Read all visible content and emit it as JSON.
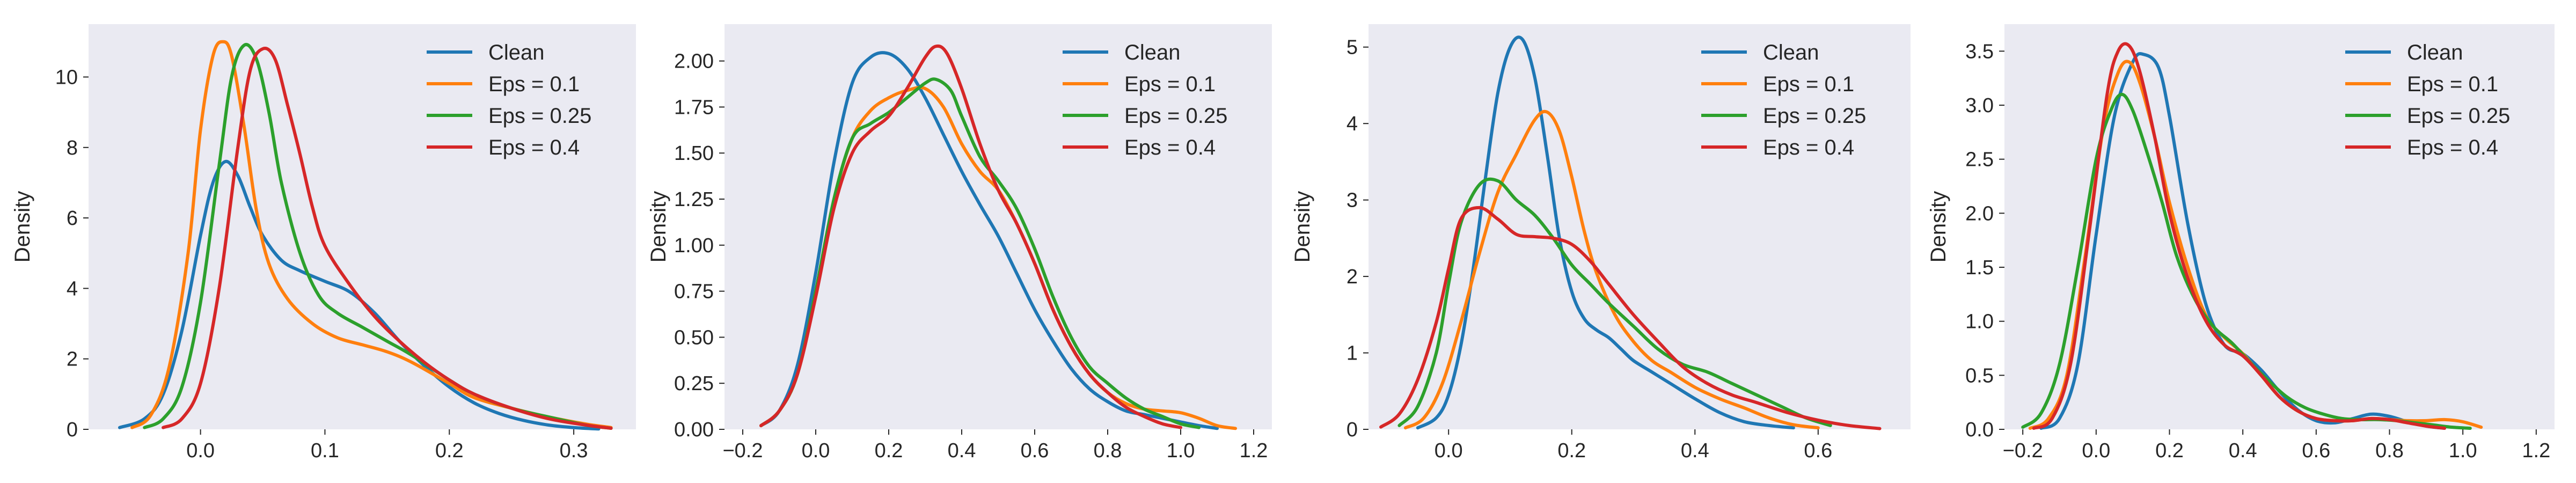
{
  "chart_data": [
    {
      "type": "line",
      "ylabel": "Density",
      "xlim": [
        -0.09,
        0.35
      ],
      "ylim": [
        0,
        11.5
      ],
      "xticks": [
        0.0,
        0.1,
        0.2,
        0.3
      ],
      "xtick_labels": [
        "0.0",
        "0.1",
        "0.2",
        "0.3"
      ],
      "yticks": [
        0,
        2,
        4,
        6,
        8,
        10
      ],
      "ytick_labels": [
        "0",
        "2",
        "4",
        "6",
        "8",
        "10"
      ],
      "grid": false,
      "legend": "top-right",
      "series": [
        {
          "name": "Clean",
          "color": "#1f77b4",
          "x": [
            -0.065,
            -0.045,
            -0.03,
            -0.015,
            0.0,
            0.01,
            0.02,
            0.03,
            0.04,
            0.05,
            0.065,
            0.08,
            0.1,
            0.12,
            0.14,
            0.16,
            0.18,
            0.2,
            0.22,
            0.24,
            0.26,
            0.28,
            0.3,
            0.32
          ],
          "y": [
            0.05,
            0.3,
            1.0,
            2.8,
            5.5,
            7.0,
            7.6,
            7.2,
            6.3,
            5.5,
            4.8,
            4.5,
            4.2,
            3.9,
            3.3,
            2.5,
            1.8,
            1.2,
            0.75,
            0.45,
            0.25,
            0.12,
            0.05,
            0.01
          ]
        },
        {
          "name": "Eps = 0.1",
          "color": "#ff7f0e",
          "x": [
            -0.055,
            -0.04,
            -0.025,
            -0.01,
            0.0,
            0.01,
            0.018,
            0.025,
            0.035,
            0.045,
            0.055,
            0.07,
            0.09,
            0.11,
            0.13,
            0.15,
            0.17,
            0.2,
            0.22,
            0.25,
            0.28,
            0.31,
            0.33
          ],
          "y": [
            0.05,
            0.4,
            1.8,
            5.0,
            8.5,
            10.6,
            11.0,
            10.6,
            8.6,
            6.2,
            4.7,
            3.7,
            3.0,
            2.6,
            2.4,
            2.2,
            1.9,
            1.3,
            0.9,
            0.6,
            0.35,
            0.15,
            0.05
          ]
        },
        {
          "name": "Eps = 0.25",
          "color": "#2ca02c",
          "x": [
            -0.045,
            -0.03,
            -0.015,
            0.0,
            0.015,
            0.025,
            0.035,
            0.045,
            0.055,
            0.065,
            0.08,
            0.095,
            0.11,
            0.13,
            0.15,
            0.17,
            0.2,
            0.22,
            0.25,
            0.28,
            0.31,
            0.33
          ],
          "y": [
            0.05,
            0.3,
            1.2,
            3.6,
            7.5,
            10.0,
            10.9,
            10.5,
            9.0,
            7.0,
            5.0,
            3.8,
            3.3,
            2.9,
            2.5,
            2.1,
            1.4,
            1.0,
            0.6,
            0.35,
            0.12,
            0.03
          ]
        },
        {
          "name": "Eps = 0.4",
          "color": "#d62728",
          "x": [
            -0.03,
            -0.015,
            0.0,
            0.015,
            0.03,
            0.04,
            0.05,
            0.06,
            0.07,
            0.08,
            0.09,
            0.1,
            0.12,
            0.14,
            0.16,
            0.18,
            0.2,
            0.22,
            0.25,
            0.28,
            0.31,
            0.33
          ],
          "y": [
            0.05,
            0.3,
            1.3,
            4.0,
            8.0,
            10.2,
            10.8,
            10.5,
            9.2,
            7.8,
            6.3,
            5.2,
            4.1,
            3.2,
            2.5,
            1.9,
            1.4,
            1.0,
            0.6,
            0.3,
            0.12,
            0.03
          ]
        }
      ]
    },
    {
      "type": "line",
      "ylabel": "Density",
      "xlim": [
        -0.25,
        1.25
      ],
      "ylim": [
        0,
        2.2
      ],
      "xticks": [
        -0.2,
        0.0,
        0.2,
        0.4,
        0.6,
        0.8,
        1.0,
        1.2
      ],
      "xtick_labels": [
        "−0.2",
        "0.0",
        "0.2",
        "0.4",
        "0.6",
        "0.8",
        "1.0",
        "1.2"
      ],
      "yticks": [
        0.0,
        0.25,
        0.5,
        0.75,
        1.0,
        1.25,
        1.5,
        1.75,
        2.0
      ],
      "ytick_labels": [
        "0.00",
        "0.25",
        "0.50",
        "0.75",
        "1.00",
        "1.25",
        "1.50",
        "1.75",
        "2.00"
      ],
      "grid": false,
      "legend": "top-right",
      "series": [
        {
          "name": "Clean",
          "color": "#1f77b4",
          "x": [
            -0.15,
            -0.1,
            -0.05,
            0.0,
            0.05,
            0.1,
            0.15,
            0.2,
            0.25,
            0.3,
            0.35,
            0.4,
            0.45,
            0.5,
            0.55,
            0.6,
            0.65,
            0.7,
            0.75,
            0.8,
            0.85,
            0.9,
            0.95,
            1.0,
            1.05,
            1.1
          ],
          "y": [
            0.02,
            0.1,
            0.35,
            0.85,
            1.45,
            1.88,
            2.02,
            2.04,
            1.96,
            1.8,
            1.6,
            1.4,
            1.22,
            1.05,
            0.85,
            0.65,
            0.48,
            0.33,
            0.22,
            0.15,
            0.1,
            0.08,
            0.06,
            0.04,
            0.02,
            0.005
          ]
        },
        {
          "name": "Eps = 0.1",
          "color": "#ff7f0e",
          "x": [
            -0.15,
            -0.1,
            -0.05,
            0.0,
            0.05,
            0.1,
            0.15,
            0.2,
            0.25,
            0.3,
            0.35,
            0.4,
            0.45,
            0.5,
            0.55,
            0.6,
            0.65,
            0.7,
            0.75,
            0.8,
            0.85,
            0.9,
            0.95,
            1.0,
            1.05,
            1.1,
            1.15
          ],
          "y": [
            0.02,
            0.1,
            0.3,
            0.75,
            1.25,
            1.58,
            1.73,
            1.8,
            1.84,
            1.85,
            1.75,
            1.55,
            1.4,
            1.3,
            1.12,
            0.9,
            0.65,
            0.45,
            0.3,
            0.2,
            0.14,
            0.11,
            0.1,
            0.09,
            0.06,
            0.02,
            0.005
          ]
        },
        {
          "name": "Eps = 0.25",
          "color": "#2ca02c",
          "x": [
            -0.15,
            -0.1,
            -0.05,
            0.0,
            0.05,
            0.1,
            0.15,
            0.2,
            0.25,
            0.3,
            0.33,
            0.37,
            0.4,
            0.45,
            0.5,
            0.55,
            0.6,
            0.65,
            0.7,
            0.75,
            0.8,
            0.85,
            0.9,
            0.95,
            1.0,
            1.05
          ],
          "y": [
            0.02,
            0.1,
            0.3,
            0.75,
            1.25,
            1.58,
            1.66,
            1.72,
            1.8,
            1.88,
            1.9,
            1.84,
            1.7,
            1.48,
            1.35,
            1.2,
            0.98,
            0.72,
            0.5,
            0.34,
            0.25,
            0.17,
            0.11,
            0.07,
            0.03,
            0.01
          ]
        },
        {
          "name": "Eps = 0.4",
          "color": "#d62728",
          "x": [
            -0.15,
            -0.1,
            -0.05,
            0.0,
            0.05,
            0.1,
            0.15,
            0.2,
            0.25,
            0.3,
            0.33,
            0.36,
            0.4,
            0.45,
            0.5,
            0.55,
            0.6,
            0.65,
            0.7,
            0.75,
            0.8,
            0.85,
            0.9,
            0.95,
            1.0
          ],
          "y": [
            0.02,
            0.1,
            0.3,
            0.72,
            1.2,
            1.5,
            1.62,
            1.7,
            1.85,
            2.02,
            2.08,
            2.04,
            1.85,
            1.55,
            1.3,
            1.12,
            0.9,
            0.65,
            0.45,
            0.3,
            0.2,
            0.12,
            0.07,
            0.03,
            0.01
          ]
        }
      ]
    },
    {
      "type": "line",
      "ylabel": "Density",
      "xlim": [
        -0.13,
        0.75
      ],
      "ylim": [
        0,
        5.3
      ],
      "xticks": [
        0.0,
        0.2,
        0.4,
        0.6
      ],
      "xtick_labels": [
        "0.0",
        "0.2",
        "0.4",
        "0.6"
      ],
      "yticks": [
        0,
        1,
        2,
        3,
        4,
        5
      ],
      "ytick_labels": [
        "0",
        "1",
        "2",
        "3",
        "4",
        "5"
      ],
      "grid": false,
      "legend": "top-right",
      "series": [
        {
          "name": "Clean",
          "color": "#1f77b4",
          "x": [
            -0.05,
            -0.02,
            0.0,
            0.02,
            0.04,
            0.06,
            0.08,
            0.1,
            0.12,
            0.14,
            0.16,
            0.18,
            0.2,
            0.22,
            0.24,
            0.26,
            0.28,
            0.3,
            0.33,
            0.36,
            0.4,
            0.44,
            0.48,
            0.52,
            0.56
          ],
          "y": [
            0.02,
            0.15,
            0.45,
            1.1,
            2.1,
            3.3,
            4.4,
            5.0,
            5.1,
            4.6,
            3.6,
            2.5,
            1.8,
            1.45,
            1.3,
            1.2,
            1.05,
            0.9,
            0.75,
            0.6,
            0.4,
            0.22,
            0.1,
            0.05,
            0.02
          ]
        },
        {
          "name": "Eps = 0.1",
          "color": "#ff7f0e",
          "x": [
            -0.07,
            -0.04,
            -0.01,
            0.02,
            0.05,
            0.08,
            0.11,
            0.14,
            0.16,
            0.18,
            0.2,
            0.22,
            0.24,
            0.27,
            0.3,
            0.33,
            0.36,
            0.4,
            0.44,
            0.48,
            0.52,
            0.56,
            0.6
          ],
          "y": [
            0.02,
            0.15,
            0.6,
            1.4,
            2.3,
            3.1,
            3.6,
            4.05,
            4.15,
            3.9,
            3.3,
            2.6,
            2.05,
            1.5,
            1.15,
            0.9,
            0.75,
            0.55,
            0.4,
            0.28,
            0.15,
            0.06,
            0.02
          ]
        },
        {
          "name": "Eps = 0.25",
          "color": "#2ca02c",
          "x": [
            -0.08,
            -0.05,
            -0.02,
            0.0,
            0.02,
            0.05,
            0.08,
            0.11,
            0.14,
            0.17,
            0.2,
            0.23,
            0.26,
            0.3,
            0.34,
            0.38,
            0.42,
            0.46,
            0.5,
            0.54,
            0.58,
            0.62
          ],
          "y": [
            0.05,
            0.3,
            1.0,
            1.9,
            2.7,
            3.2,
            3.25,
            3.0,
            2.8,
            2.5,
            2.15,
            1.9,
            1.65,
            1.35,
            1.05,
            0.85,
            0.75,
            0.6,
            0.45,
            0.3,
            0.15,
            0.05
          ]
        },
        {
          "name": "Eps = 0.4",
          "color": "#d62728",
          "x": [
            -0.11,
            -0.08,
            -0.05,
            -0.02,
            0.0,
            0.02,
            0.05,
            0.08,
            0.11,
            0.14,
            0.17,
            0.2,
            0.23,
            0.26,
            0.3,
            0.34,
            0.38,
            0.42,
            0.46,
            0.5,
            0.55,
            0.6,
            0.65,
            0.7
          ],
          "y": [
            0.03,
            0.2,
            0.65,
            1.4,
            2.1,
            2.75,
            2.9,
            2.75,
            2.55,
            2.52,
            2.5,
            2.42,
            2.2,
            1.9,
            1.5,
            1.15,
            0.82,
            0.6,
            0.45,
            0.35,
            0.22,
            0.12,
            0.05,
            0.01
          ]
        }
      ]
    },
    {
      "type": "line",
      "ylabel": "Density",
      "xlim": [
        -0.25,
        1.25
      ],
      "ylim": [
        0,
        3.75
      ],
      "xticks": [
        -0.2,
        0.0,
        0.2,
        0.4,
        0.6,
        0.8,
        1.0,
        1.2
      ],
      "xtick_labels": [
        "−0.2",
        "0.0",
        "0.2",
        "0.4",
        "0.6",
        "0.8",
        "1.0",
        "1.2"
      ],
      "yticks": [
        0.0,
        0.5,
        1.0,
        1.5,
        2.0,
        2.5,
        3.0,
        3.5
      ],
      "ytick_labels": [
        "0.0",
        "0.5",
        "1.0",
        "1.5",
        "2.0",
        "2.5",
        "3.0",
        "3.5"
      ],
      "grid": false,
      "legend": "top-right",
      "series": [
        {
          "name": "Clean",
          "color": "#1f77b4",
          "x": [
            -0.15,
            -0.1,
            -0.05,
            0.0,
            0.05,
            0.1,
            0.13,
            0.17,
            0.2,
            0.25,
            0.3,
            0.35,
            0.4,
            0.45,
            0.5,
            0.55,
            0.6,
            0.65,
            0.7,
            0.75,
            0.8,
            0.85,
            0.9,
            0.95
          ],
          "y": [
            0.01,
            0.1,
            0.6,
            1.8,
            2.9,
            3.4,
            3.47,
            3.35,
            2.9,
            1.9,
            1.15,
            0.78,
            0.7,
            0.55,
            0.35,
            0.18,
            0.08,
            0.06,
            0.1,
            0.14,
            0.12,
            0.07,
            0.03,
            0.01
          ]
        },
        {
          "name": "Eps = 0.1",
          "color": "#ff7f0e",
          "x": [
            -0.18,
            -0.13,
            -0.08,
            -0.03,
            0.02,
            0.06,
            0.09,
            0.12,
            0.16,
            0.2,
            0.25,
            0.3,
            0.35,
            0.4,
            0.45,
            0.5,
            0.55,
            0.6,
            0.65,
            0.7,
            0.75,
            0.8,
            0.85,
            0.9,
            0.95,
            1.0,
            1.05
          ],
          "y": [
            0.01,
            0.1,
            0.5,
            1.6,
            2.8,
            3.3,
            3.4,
            3.2,
            2.7,
            2.1,
            1.5,
            1.05,
            0.85,
            0.7,
            0.5,
            0.3,
            0.17,
            0.1,
            0.08,
            0.08,
            0.1,
            0.09,
            0.08,
            0.08,
            0.09,
            0.07,
            0.02
          ]
        },
        {
          "name": "Eps = 0.25",
          "color": "#2ca02c",
          "x": [
            -0.2,
            -0.15,
            -0.1,
            -0.05,
            0.0,
            0.04,
            0.07,
            0.1,
            0.14,
            0.18,
            0.22,
            0.27,
            0.32,
            0.37,
            0.42,
            0.47,
            0.52,
            0.57,
            0.62,
            0.67,
            0.72,
            0.77,
            0.82,
            0.87,
            0.92,
            0.97,
            1.02
          ],
          "y": [
            0.02,
            0.15,
            0.6,
            1.5,
            2.5,
            2.95,
            3.1,
            2.95,
            2.55,
            2.1,
            1.6,
            1.2,
            0.95,
            0.8,
            0.62,
            0.45,
            0.3,
            0.2,
            0.14,
            0.1,
            0.09,
            0.09,
            0.08,
            0.06,
            0.04,
            0.02,
            0.01
          ]
        },
        {
          "name": "Eps = 0.4",
          "color": "#d62728",
          "x": [
            -0.17,
            -0.12,
            -0.07,
            -0.02,
            0.03,
            0.06,
            0.09,
            0.12,
            0.16,
            0.2,
            0.25,
            0.3,
            0.35,
            0.4,
            0.45,
            0.5,
            0.55,
            0.6,
            0.65,
            0.7,
            0.75,
            0.8,
            0.85,
            0.9,
            0.95
          ],
          "y": [
            0.01,
            0.1,
            0.6,
            1.8,
            3.1,
            3.5,
            3.55,
            3.3,
            2.7,
            2.0,
            1.4,
            1.0,
            0.78,
            0.68,
            0.5,
            0.3,
            0.17,
            0.1,
            0.08,
            0.08,
            0.1,
            0.09,
            0.06,
            0.03,
            0.01
          ]
        }
      ]
    }
  ]
}
